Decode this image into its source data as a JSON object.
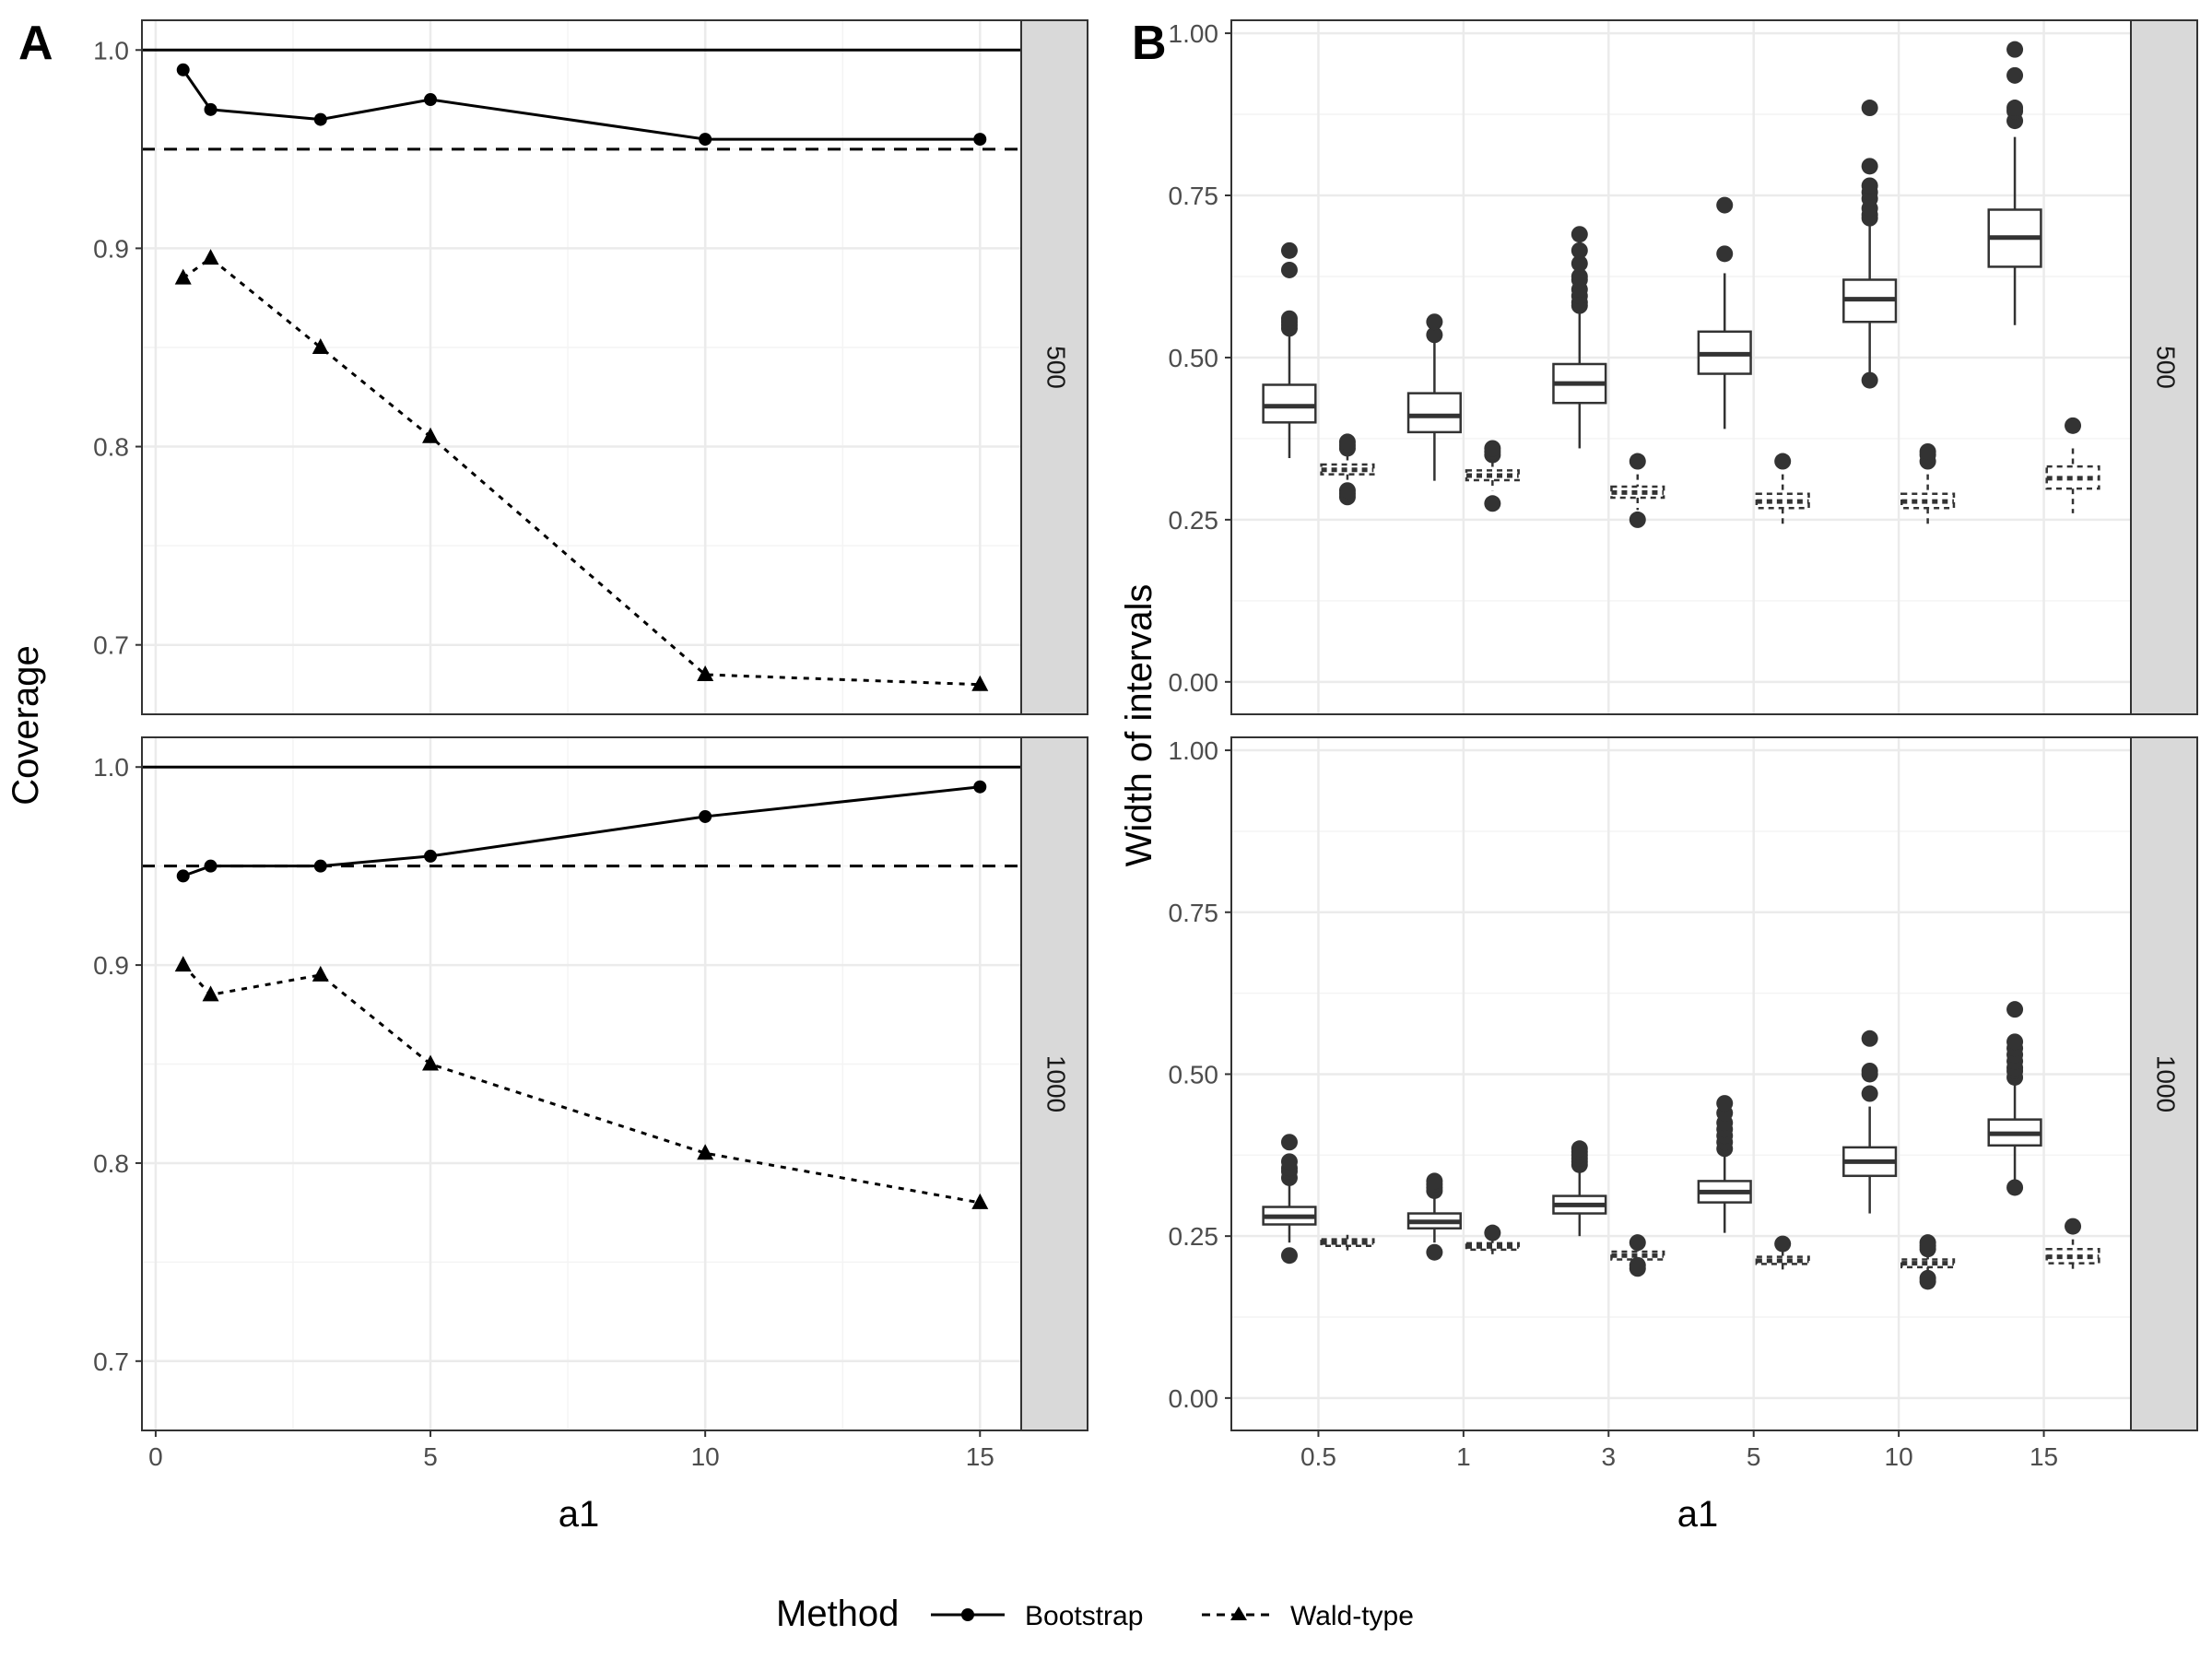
{
  "figure": {
    "panel_a_label": "A",
    "panel_b_label": "B",
    "legend": {
      "title": "Method",
      "items": [
        {
          "label": "Bootstrap",
          "marker": "circle",
          "linetype": "solid"
        },
        {
          "label": "Wald-type",
          "marker": "triangle",
          "linetype": "dashed"
        }
      ]
    }
  },
  "chart_data": [
    {
      "type": "line",
      "panel": "A",
      "xlabel": "a1",
      "ylabel": "Coverage",
      "xlim": [
        -0.25,
        15.75
      ],
      "ylim": [
        0.665,
        1.015
      ],
      "xticks": [
        0,
        5,
        10,
        15
      ],
      "xtick_labels": [
        "0",
        "5",
        "10",
        "15"
      ],
      "yticks": [
        0.7,
        0.8,
        0.9,
        1.0
      ],
      "ytick_labels": [
        "0.7",
        "0.8",
        "0.9",
        "1.0"
      ],
      "reference_lines": [
        {
          "y": 1.0,
          "style": "solid"
        },
        {
          "y": 0.95,
          "style": "dashed"
        }
      ],
      "facets": [
        {
          "strip": "500",
          "series": [
            {
              "name": "Bootstrap",
              "x": [
                0.5,
                1,
                3,
                5,
                10,
                15
              ],
              "y": [
                0.99,
                0.97,
                0.965,
                0.975,
                0.955,
                0.955
              ]
            },
            {
              "name": "Wald-type",
              "x": [
                0.5,
                1,
                3,
                5,
                10,
                15
              ],
              "y": [
                0.885,
                0.895,
                0.85,
                0.805,
                0.685,
                0.68
              ]
            }
          ]
        },
        {
          "strip": "1000",
          "series": [
            {
              "name": "Bootstrap",
              "x": [
                0.5,
                1,
                3,
                5,
                10,
                15
              ],
              "y": [
                0.945,
                0.95,
                0.95,
                0.955,
                0.975,
                0.99
              ]
            },
            {
              "name": "Wald-type",
              "x": [
                0.5,
                1,
                3,
                5,
                10,
                15
              ],
              "y": [
                0.9,
                0.885,
                0.895,
                0.85,
                0.805,
                0.78
              ]
            }
          ]
        }
      ]
    },
    {
      "type": "box",
      "panel": "B",
      "xlabel": "a1",
      "ylabel": "Width of intervals",
      "categories": [
        "0.5",
        "1",
        "3",
        "5",
        "10",
        "15"
      ],
      "ylim": [
        -0.05,
        1.02
      ],
      "yticks": [
        0.0,
        0.25,
        0.5,
        0.75,
        1.0
      ],
      "ytick_labels": [
        "0.00",
        "0.25",
        "0.50",
        "0.75",
        "1.00"
      ],
      "facets": [
        {
          "strip": "500",
          "boxes": {
            "Bootstrap": [
              {
                "q1": 0.4,
                "median": 0.425,
                "q3": 0.458,
                "lo": 0.345,
                "hi": 0.535,
                "outliers": [
                  0.545,
                  0.55,
                  0.555,
                  0.56,
                  0.635,
                  0.665
                ]
              },
              {
                "q1": 0.385,
                "median": 0.41,
                "q3": 0.445,
                "lo": 0.31,
                "hi": 0.525,
                "outliers": [
                  0.535,
                  0.555
                ]
              },
              {
                "q1": 0.43,
                "median": 0.46,
                "q3": 0.49,
                "lo": 0.36,
                "hi": 0.575,
                "outliers": [
                  0.58,
                  0.585,
                  0.595,
                  0.605,
                  0.62,
                  0.625,
                  0.645,
                  0.665,
                  0.69
                ]
              },
              {
                "q1": 0.475,
                "median": 0.505,
                "q3": 0.54,
                "lo": 0.39,
                "hi": 0.63,
                "outliers": [
                  0.66,
                  0.735
                ]
              },
              {
                "q1": 0.555,
                "median": 0.59,
                "q3": 0.62,
                "lo": 0.465,
                "hi": 0.71,
                "outliers": [
                  0.465,
                  0.715,
                  0.72,
                  0.73,
                  0.745,
                  0.755,
                  0.765,
                  0.795,
                  0.885
                ]
              },
              {
                "q1": 0.64,
                "median": 0.685,
                "q3": 0.728,
                "lo": 0.55,
                "hi": 0.84,
                "outliers": [
                  0.865,
                  0.88,
                  0.885,
                  0.935,
                  0.975
                ]
              }
            ],
            "Wald-type": [
              {
                "q1": 0.32,
                "median": 0.327,
                "q3": 0.335,
                "lo": 0.305,
                "hi": 0.35,
                "outliers": [
                  0.285,
                  0.29,
                  0.295,
                  0.36,
                  0.365,
                  0.37
                ]
              },
              {
                "q1": 0.311,
                "median": 0.318,
                "q3": 0.326,
                "lo": 0.295,
                "hi": 0.34,
                "outliers": [
                  0.275,
                  0.35,
                  0.355,
                  0.36
                ]
              },
              {
                "q1": 0.284,
                "median": 0.292,
                "q3": 0.301,
                "lo": 0.265,
                "hi": 0.32,
                "outliers": [
                  0.25,
                  0.34
                ]
              },
              {
                "q1": 0.268,
                "median": 0.278,
                "q3": 0.29,
                "lo": 0.24,
                "hi": 0.32,
                "outliers": [
                  0.34
                ]
              },
              {
                "q1": 0.268,
                "median": 0.278,
                "q3": 0.29,
                "lo": 0.24,
                "hi": 0.32,
                "outliers": [
                  0.34,
                  0.35,
                  0.355
                ]
              },
              {
                "q1": 0.298,
                "median": 0.314,
                "q3": 0.332,
                "lo": 0.26,
                "hi": 0.36,
                "outliers": [
                  0.395
                ]
              }
            ]
          }
        },
        {
          "strip": "1000",
          "boxes": {
            "Bootstrap": [
              {
                "q1": 0.268,
                "median": 0.28,
                "q3": 0.295,
                "lo": 0.24,
                "hi": 0.335,
                "outliers": [
                  0.22,
                  0.34,
                  0.35,
                  0.355,
                  0.365,
                  0.395
                ]
              },
              {
                "q1": 0.262,
                "median": 0.272,
                "q3": 0.285,
                "lo": 0.24,
                "hi": 0.31,
                "outliers": [
                  0.225,
                  0.32,
                  0.325,
                  0.33,
                  0.335
                ]
              },
              {
                "q1": 0.285,
                "median": 0.298,
                "q3": 0.312,
                "lo": 0.25,
                "hi": 0.355,
                "outliers": [
                  0.36,
                  0.365,
                  0.37,
                  0.375,
                  0.38,
                  0.385
                ]
              },
              {
                "q1": 0.302,
                "median": 0.318,
                "q3": 0.335,
                "lo": 0.255,
                "hi": 0.38,
                "outliers": [
                  0.385,
                  0.395,
                  0.405,
                  0.415,
                  0.425,
                  0.44,
                  0.455
                ]
              },
              {
                "q1": 0.343,
                "median": 0.365,
                "q3": 0.387,
                "lo": 0.285,
                "hi": 0.45,
                "outliers": [
                  0.47,
                  0.5,
                  0.505,
                  0.555
                ]
              },
              {
                "q1": 0.39,
                "median": 0.408,
                "q3": 0.43,
                "lo": 0.325,
                "hi": 0.49,
                "outliers": [
                  0.325,
                  0.495,
                  0.505,
                  0.51,
                  0.52,
                  0.53,
                  0.54,
                  0.55,
                  0.6
                ]
              }
            ],
            "Wald-type": [
              {
                "q1": 0.235,
                "median": 0.24,
                "q3": 0.245,
                "lo": 0.228,
                "hi": 0.252,
                "outliers": []
              },
              {
                "q1": 0.229,
                "median": 0.234,
                "q3": 0.239,
                "lo": 0.222,
                "hi": 0.246,
                "outliers": [
                  0.255
                ]
              },
              {
                "q1": 0.214,
                "median": 0.22,
                "q3": 0.226,
                "lo": 0.205,
                "hi": 0.235,
                "outliers": [
                  0.2,
                  0.205,
                  0.24
                ]
              },
              {
                "q1": 0.207,
                "median": 0.212,
                "q3": 0.218,
                "lo": 0.198,
                "hi": 0.228,
                "outliers": [
                  0.238
                ]
              },
              {
                "q1": 0.202,
                "median": 0.208,
                "q3": 0.214,
                "lo": 0.193,
                "hi": 0.222,
                "outliers": [
                  0.18,
                  0.185,
                  0.23,
                  0.235,
                  0.24
                ]
              },
              {
                "q1": 0.208,
                "median": 0.218,
                "q3": 0.23,
                "lo": 0.195,
                "hi": 0.245,
                "outliers": [
                  0.265
                ]
              }
            ]
          }
        }
      ]
    }
  ]
}
